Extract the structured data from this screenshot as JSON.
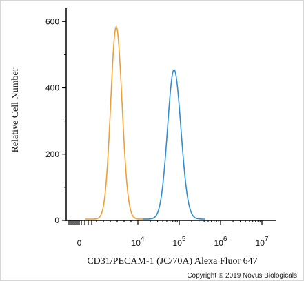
{
  "chart_data": {
    "type": "line",
    "title": "",
    "xlabel": "CD31/PECAM-1 (JC/70A) Alexa Fluor 647",
    "ylabel": "Relative Cell Number",
    "ylim": [
      0,
      640
    ],
    "y_ticks": [
      "0",
      "200",
      "400",
      "600"
    ],
    "x_ticks": [
      {
        "base": "0",
        "exp": ""
      },
      {
        "base": "10",
        "exp": "4"
      },
      {
        "base": "10",
        "exp": "5"
      },
      {
        "base": "10",
        "exp": "6"
      },
      {
        "base": "10",
        "exp": "7"
      }
    ],
    "x_scale": "biexponential",
    "grid": false,
    "series": [
      {
        "color": "#f0a030",
        "peak_x": 6300,
        "peak_y": 585
      },
      {
        "color": "#2f8fd2",
        "peak_x": 75000,
        "peak_y": 455
      }
    ]
  },
  "copyright": "Copyright © 2019 Novus Biologicals"
}
